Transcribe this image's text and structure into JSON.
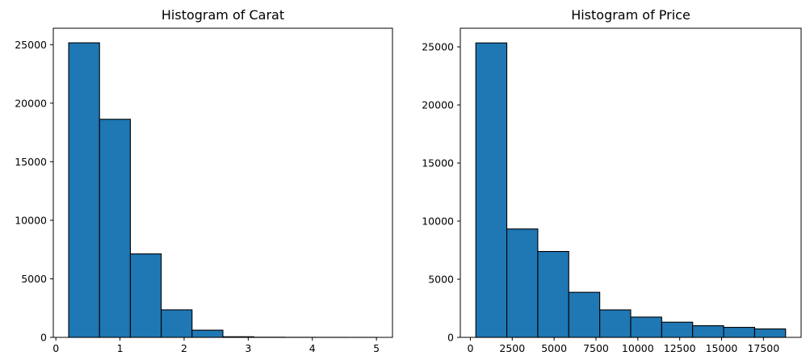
{
  "colors": {
    "bar_fill": "#1f77b4",
    "bar_edge": "#000000"
  },
  "chart_data": [
    {
      "type": "bar",
      "title": "Histogram of Carat",
      "xlabel": "",
      "ylabel": "",
      "bin_edges": [
        0.2,
        0.681,
        1.162,
        1.643,
        2.124,
        2.605,
        3.086,
        3.567,
        4.048,
        4.529,
        5.01
      ],
      "values": [
        25155,
        18626,
        7129,
        2349,
        614,
        54,
        14,
        5,
        2,
        1
      ],
      "xlim": [
        -0.04,
        5.25
      ],
      "ylim": [
        0,
        26400
      ],
      "xticks": [
        0,
        1,
        2,
        3,
        4,
        5
      ],
      "yticks": [
        0,
        5000,
        10000,
        15000,
        20000,
        25000
      ],
      "grid": false
    },
    {
      "type": "bar",
      "title": "Histogram of Price",
      "xlabel": "",
      "ylabel": "",
      "bin_edges": [
        326,
        2175.7,
        4025.4,
        5875.1,
        7724.8,
        9574.5,
        11424.2,
        13273.9,
        15123.6,
        16973.3,
        18823
      ],
      "values": [
        25335,
        9328,
        7393,
        3878,
        2364,
        1745,
        1306,
        1002,
        863,
        726
      ],
      "xlim": [
        -600,
        19750
      ],
      "ylim": [
        0,
        26600
      ],
      "xticks": [
        0,
        2500,
        5000,
        7500,
        10000,
        12500,
        15000,
        17500
      ],
      "yticks": [
        0,
        5000,
        10000,
        15000,
        20000,
        25000
      ],
      "grid": false
    }
  ]
}
